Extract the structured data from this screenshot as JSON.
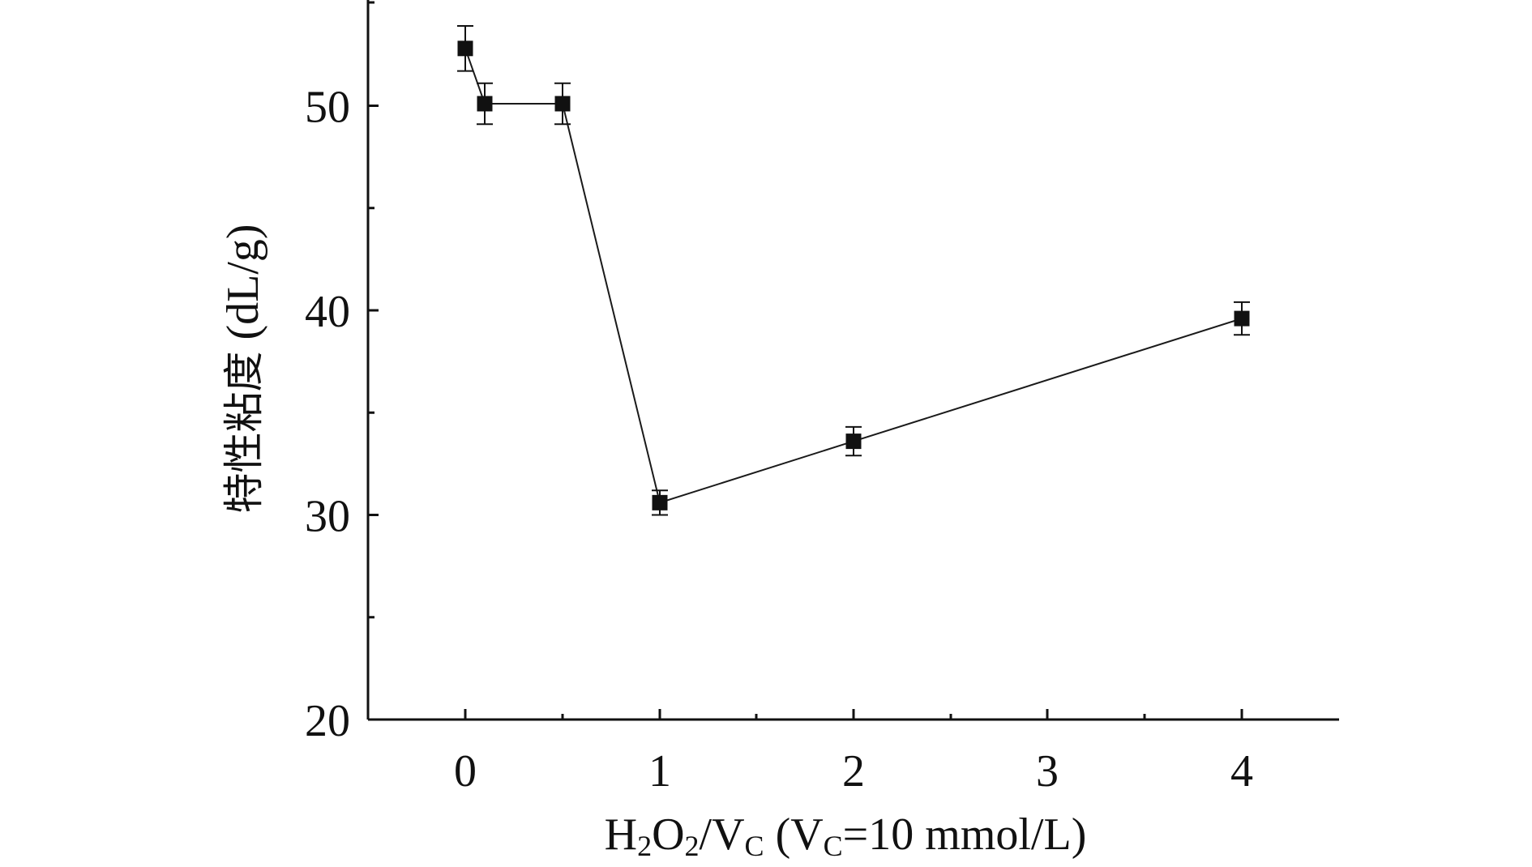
{
  "chart_data": {
    "type": "line",
    "x": [
      0,
      0.1,
      0.5,
      1,
      2,
      4
    ],
    "x_tick_labels": [
      "0",
      "1",
      "2",
      "3",
      "4"
    ],
    "y": [
      52.8,
      50.1,
      50.1,
      30.6,
      33.6,
      39.6
    ],
    "y_error": [
      1.1,
      1.0,
      1.0,
      0.6,
      0.7,
      0.8
    ],
    "y_ticks": [
      20,
      30,
      40,
      50
    ],
    "ylim": [
      20,
      55
    ],
    "xlabel": {
      "parts": [
        {
          "t": "H",
          "sub": false
        },
        {
          "t": "2",
          "sub": true
        },
        {
          "t": "O",
          "sub": false
        },
        {
          "t": "2",
          "sub": true
        },
        {
          "t": "/V",
          "sub": false
        },
        {
          "t": "C",
          "sub": true
        },
        {
          "t": " (V",
          "sub": false
        },
        {
          "t": "C",
          "sub": true
        },
        {
          "t": "=10 mmol/L)",
          "sub": false
        }
      ]
    },
    "ylabel": {
      "cjk": "特性粘度",
      "latin": " (dL/g)"
    },
    "marker": "square",
    "colors": {
      "line": "#1a1a1a",
      "marker": "#111111",
      "axis": "#111111"
    },
    "grid": false,
    "legend": "none"
  }
}
